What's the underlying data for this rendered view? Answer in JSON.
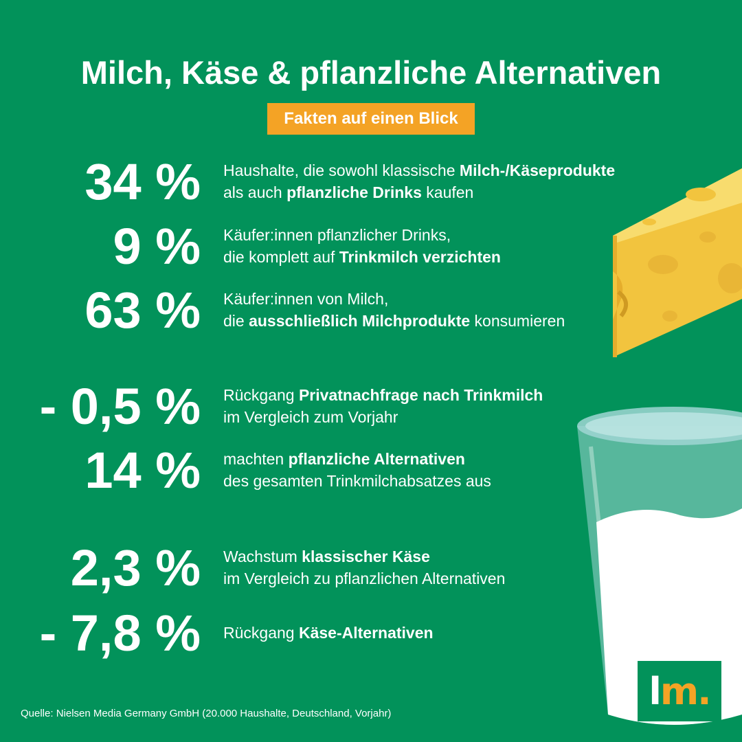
{
  "header": {
    "title": "Milch, Käse & pflanzliche Alternativen",
    "subtitle": "Fakten auf einen Blick"
  },
  "stats": [
    {
      "value": "34 %",
      "line1": [
        {
          "t": "Haushalte, die sowohl klassische ",
          "b": false
        },
        {
          "t": "Milch-/Käseprodukte",
          "b": true
        }
      ],
      "line2": [
        {
          "t": "als auch ",
          "b": false
        },
        {
          "t": "pflanzliche Drinks",
          "b": true
        },
        {
          "t": " kaufen",
          "b": false
        }
      ]
    },
    {
      "value": "9 %",
      "line1": [
        {
          "t": "Käufer:innen pflanzlicher Drinks,",
          "b": false
        }
      ],
      "line2": [
        {
          "t": "die komplett auf ",
          "b": false
        },
        {
          "t": "Trinkmilch verzichten",
          "b": true
        }
      ]
    },
    {
      "value": "63 %",
      "line1": [
        {
          "t": "Käufer:innen von Milch,",
          "b": false
        }
      ],
      "line2": [
        {
          "t": "die ",
          "b": false
        },
        {
          "t": "ausschließlich Milchprodukte",
          "b": true
        },
        {
          "t": " konsumieren",
          "b": false
        }
      ]
    },
    {
      "value": "- 0,5 %",
      "line1": [
        {
          "t": "Rückgang ",
          "b": false
        },
        {
          "t": "Privatnachfrage nach Trinkmilch",
          "b": true
        }
      ],
      "line2": [
        {
          "t": "im Vergleich zum Vorjahr",
          "b": false
        }
      ]
    },
    {
      "value": "14 %",
      "line1": [
        {
          "t": "machten ",
          "b": false
        },
        {
          "t": "pflanzliche Alternativen",
          "b": true
        }
      ],
      "line2": [
        {
          "t": "des gesamten Trinkmilchabsatzes aus",
          "b": false
        }
      ]
    },
    {
      "value": "2,3 %",
      "line1": [
        {
          "t": "Wachstum ",
          "b": false
        },
        {
          "t": "klassischer Käse",
          "b": true
        }
      ],
      "line2": [
        {
          "t": "im Vergleich zu pflanzlichen Alternativen",
          "b": false
        }
      ]
    },
    {
      "value": "- 7,8 %",
      "line1": [
        {
          "t": "Rückgang ",
          "b": false
        },
        {
          "t": "Käse-Alternativen",
          "b": true
        }
      ],
      "line2": []
    }
  ],
  "footer": {
    "source": "Quelle: Nielsen Media Germany GmbH (20.000 Haushalte, Deutschland, Vorjahr)"
  },
  "logo": {
    "l": "l",
    "m": "m."
  },
  "illustrations": [
    "cheese-wedge",
    "milk-glass"
  ],
  "colors": {
    "background": "#02925a",
    "accent": "#f4a325",
    "text": "#ffffff"
  }
}
